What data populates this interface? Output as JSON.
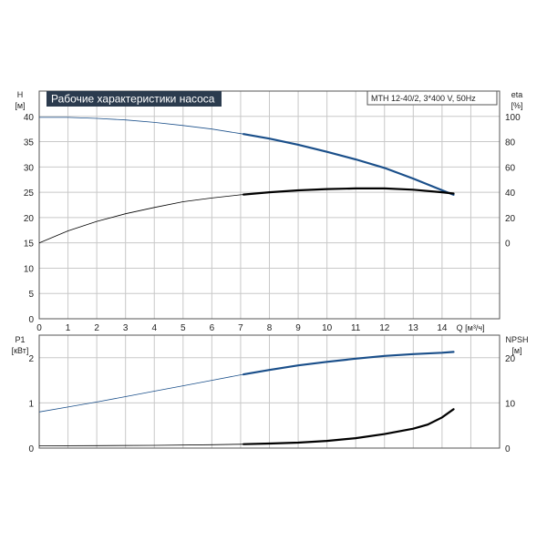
{
  "colors": {
    "blue": "#1a4f8a",
    "black": "#000000",
    "grid": "#c8c8c8",
    "frame": "#555555",
    "title_bg": "#2b3b4e"
  },
  "title": "Рабочие характеристики насоса",
  "model": "MTH 12-40/2, 3*400 V, 50Hz",
  "chart_data": [
    {
      "type": "line",
      "name": "head-efficiency",
      "x_unit_label": "Q [м³/ч]",
      "xlim": [
        0,
        16
      ],
      "x_ticks": [
        "0",
        "1",
        "2",
        "3",
        "4",
        "5",
        "6",
        "7",
        "8",
        "9",
        "10",
        "11",
        "12",
        "13",
        "14"
      ],
      "y_left_label": [
        "H",
        "[м]"
      ],
      "y_left_lim": [
        0,
        45
      ],
      "y_left_ticks": [
        "0",
        "5",
        "10",
        "15",
        "20",
        "25",
        "30",
        "35",
        "40"
      ],
      "y_right_label": [
        "eta",
        "[%]"
      ],
      "y_right_lim": [
        -60,
        120
      ],
      "y_right_ticks": [
        "0",
        "20",
        "40",
        "60",
        "80",
        "100"
      ],
      "grid": true,
      "series": [
        {
          "key": "H",
          "axis": "left",
          "color": "blue",
          "duty_from": 7.1,
          "x": [
            0,
            1,
            2,
            3,
            4,
            5,
            6,
            7,
            8,
            9,
            10,
            11,
            12,
            13,
            14,
            14.4
          ],
          "y": [
            39.8,
            39.8,
            39.6,
            39.3,
            38.8,
            38.2,
            37.5,
            36.6,
            35.6,
            34.4,
            33.0,
            31.5,
            29.8,
            27.7,
            25.4,
            24.5
          ]
        },
        {
          "key": "eta",
          "axis": "right",
          "color": "black",
          "duty_from": 7.1,
          "x": [
            0,
            1,
            2,
            3,
            4,
            5,
            6,
            7,
            8,
            9,
            10,
            11,
            12,
            13,
            14,
            14.4
          ],
          "y": [
            0,
            9.5,
            17,
            23,
            28,
            32.5,
            35.5,
            38,
            40,
            41.5,
            42.5,
            43,
            43,
            42,
            40,
            39
          ]
        }
      ]
    },
    {
      "type": "line",
      "name": "power-npsh",
      "xlim": [
        0,
        16
      ],
      "y_left_label": [
        "P1",
        "[кВт]"
      ],
      "y_left_lim": [
        0,
        2.5
      ],
      "y_left_ticks": [
        "0",
        "1",
        "2"
      ],
      "y_right_label": [
        "NPSH",
        "[м]"
      ],
      "y_right_lim": [
        0,
        25
      ],
      "y_right_ticks": [
        "0",
        "10",
        "20"
      ],
      "grid": true,
      "series": [
        {
          "key": "P1",
          "axis": "left",
          "color": "blue",
          "duty_from": 7.1,
          "x": [
            0,
            1,
            2,
            3,
            4,
            5,
            6,
            7,
            8,
            9,
            10,
            11,
            12,
            13,
            14,
            14.4
          ],
          "y": [
            0.8,
            0.91,
            1.02,
            1.14,
            1.26,
            1.38,
            1.5,
            1.62,
            1.73,
            1.83,
            1.91,
            1.98,
            2.04,
            2.08,
            2.11,
            2.13
          ]
        },
        {
          "key": "NPSH",
          "axis": "right",
          "color": "black",
          "duty_from": 7.1,
          "x": [
            0,
            2,
            4,
            6,
            7,
            8,
            9,
            10,
            11,
            12,
            13,
            13.5,
            14,
            14.4
          ],
          "y": [
            0.5,
            0.55,
            0.6,
            0.75,
            0.85,
            1.0,
            1.2,
            1.6,
            2.2,
            3.1,
            4.3,
            5.2,
            6.8,
            8.6
          ]
        }
      ]
    }
  ]
}
